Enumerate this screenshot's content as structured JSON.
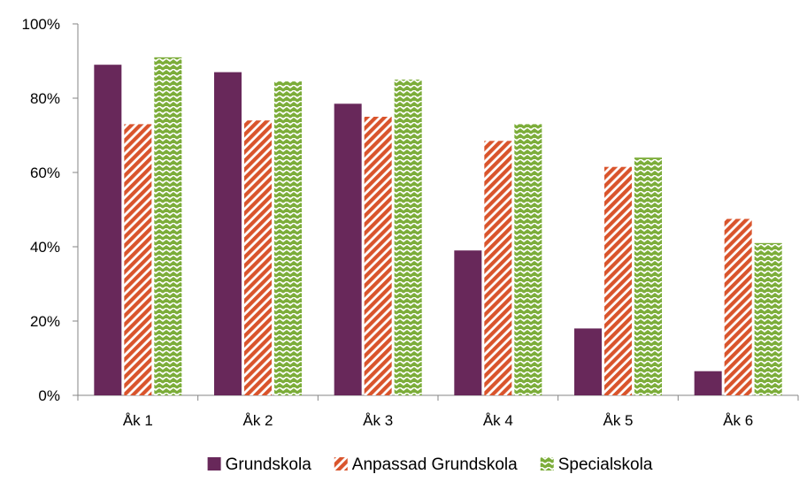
{
  "chart_data": {
    "type": "bar",
    "categories": [
      "Åk 1",
      "Åk 2",
      "Åk 3",
      "Åk 4",
      "Åk 5",
      "Åk 6"
    ],
    "series": [
      {
        "name": "Grundskola",
        "values": [
          89,
          87,
          78.5,
          39,
          18,
          6.5
        ],
        "color": "#68285a",
        "pattern": "solid"
      },
      {
        "name": "Anpassad Grundskola",
        "values": [
          73,
          74,
          75,
          68.5,
          61.5,
          47.5
        ],
        "color": "#d9542c",
        "pattern": "diagonal-stripes"
      },
      {
        "name": "Specialskola",
        "values": [
          91,
          84.5,
          85,
          73,
          64,
          41
        ],
        "color": "#7cad3a",
        "pattern": "zigzag"
      }
    ],
    "ylim": [
      0,
      100
    ],
    "yticks": [
      0,
      20,
      40,
      60,
      80,
      100
    ],
    "ytick_labels": [
      "0%",
      "20%",
      "40%",
      "60%",
      "80%",
      "100%"
    ],
    "title": "",
    "xlabel": "",
    "ylabel": "",
    "grid": false,
    "legend_position": "bottom"
  }
}
